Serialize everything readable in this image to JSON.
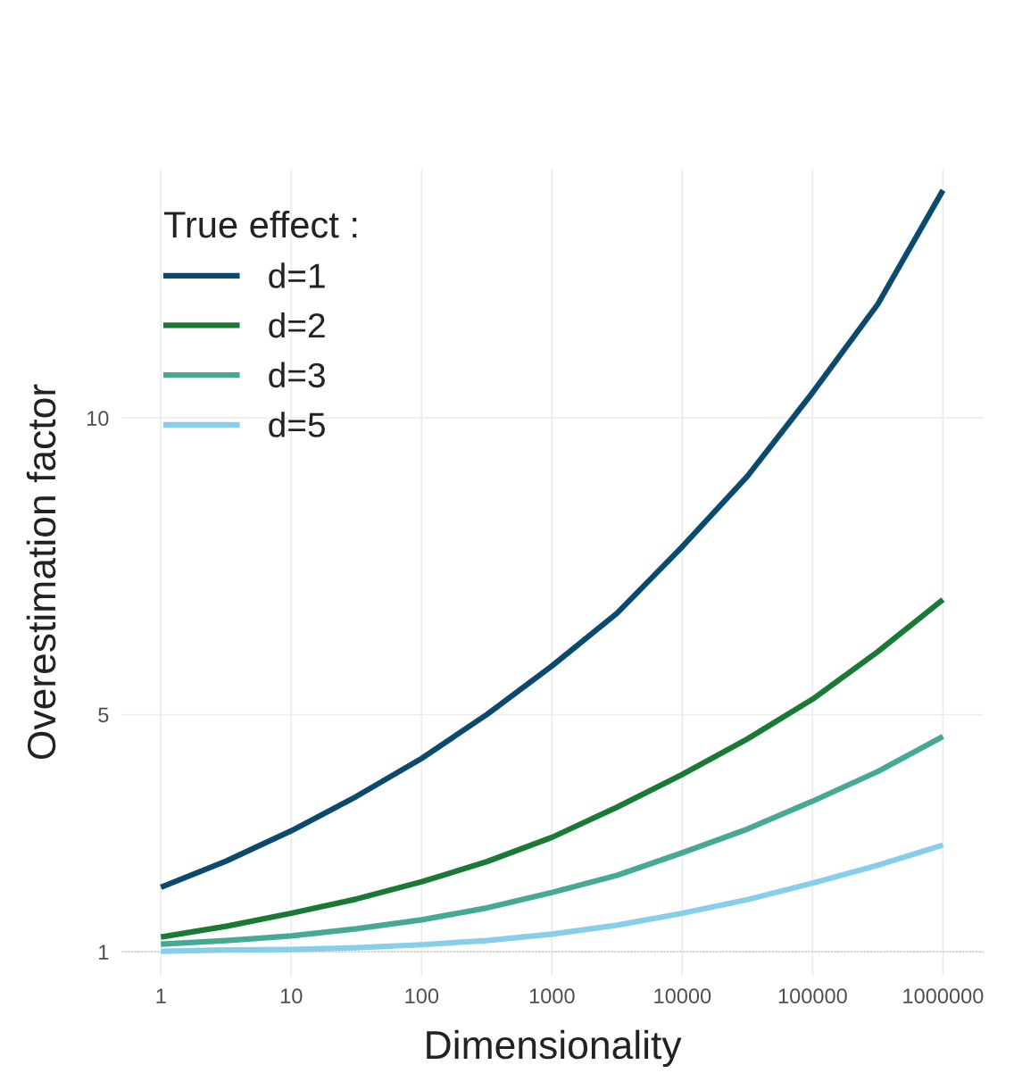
{
  "chart_data": {
    "type": "line",
    "xlabel": "Dimensionality",
    "ylabel": "Overestimation factor",
    "legend_title": "True effect :",
    "log": "x",
    "grid": true,
    "legend": "top left",
    "line_style": "solid",
    "marker": "none",
    "x": [
      1,
      3.16,
      10,
      31.6,
      100,
      316,
      1000,
      3162,
      10000,
      31623,
      100000,
      316228,
      1000000
    ],
    "xlim": [
      0.5,
      2050000
    ],
    "ylim": [
      0.6,
      14.2
    ],
    "xticks": [
      1,
      10,
      100,
      1000,
      10000,
      100000,
      1000000
    ],
    "yticks": [
      1,
      5,
      10
    ],
    "ref_lines": [
      {
        "axis": "y",
        "value": 1,
        "color": "#bbbbbb",
        "line_style": "dotted"
      }
    ],
    "series": [
      {
        "name": "d=1",
        "color": "#0b4a6f",
        "values": [
          2.09,
          2.53,
          3.04,
          3.62,
          4.26,
          5.0,
          5.82,
          6.71,
          7.83,
          9.02,
          10.43,
          11.92,
          13.84
        ]
      },
      {
        "name": "d=2",
        "color": "#1a7a35",
        "values": [
          1.25,
          1.43,
          1.65,
          1.89,
          2.18,
          2.52,
          2.93,
          3.44,
          3.99,
          4.59,
          5.26,
          6.06,
          6.94
        ]
      },
      {
        "name": "d=3",
        "color": "#45a996",
        "values": [
          1.13,
          1.19,
          1.27,
          1.39,
          1.54,
          1.74,
          2.0,
          2.29,
          2.67,
          3.07,
          3.54,
          4.04,
          4.63
        ]
      },
      {
        "name": "d=5",
        "color": "#87ceeb",
        "values": [
          1.01,
          1.03,
          1.04,
          1.07,
          1.12,
          1.19,
          1.3,
          1.45,
          1.65,
          1.88,
          2.16,
          2.46,
          2.8
        ]
      }
    ]
  }
}
